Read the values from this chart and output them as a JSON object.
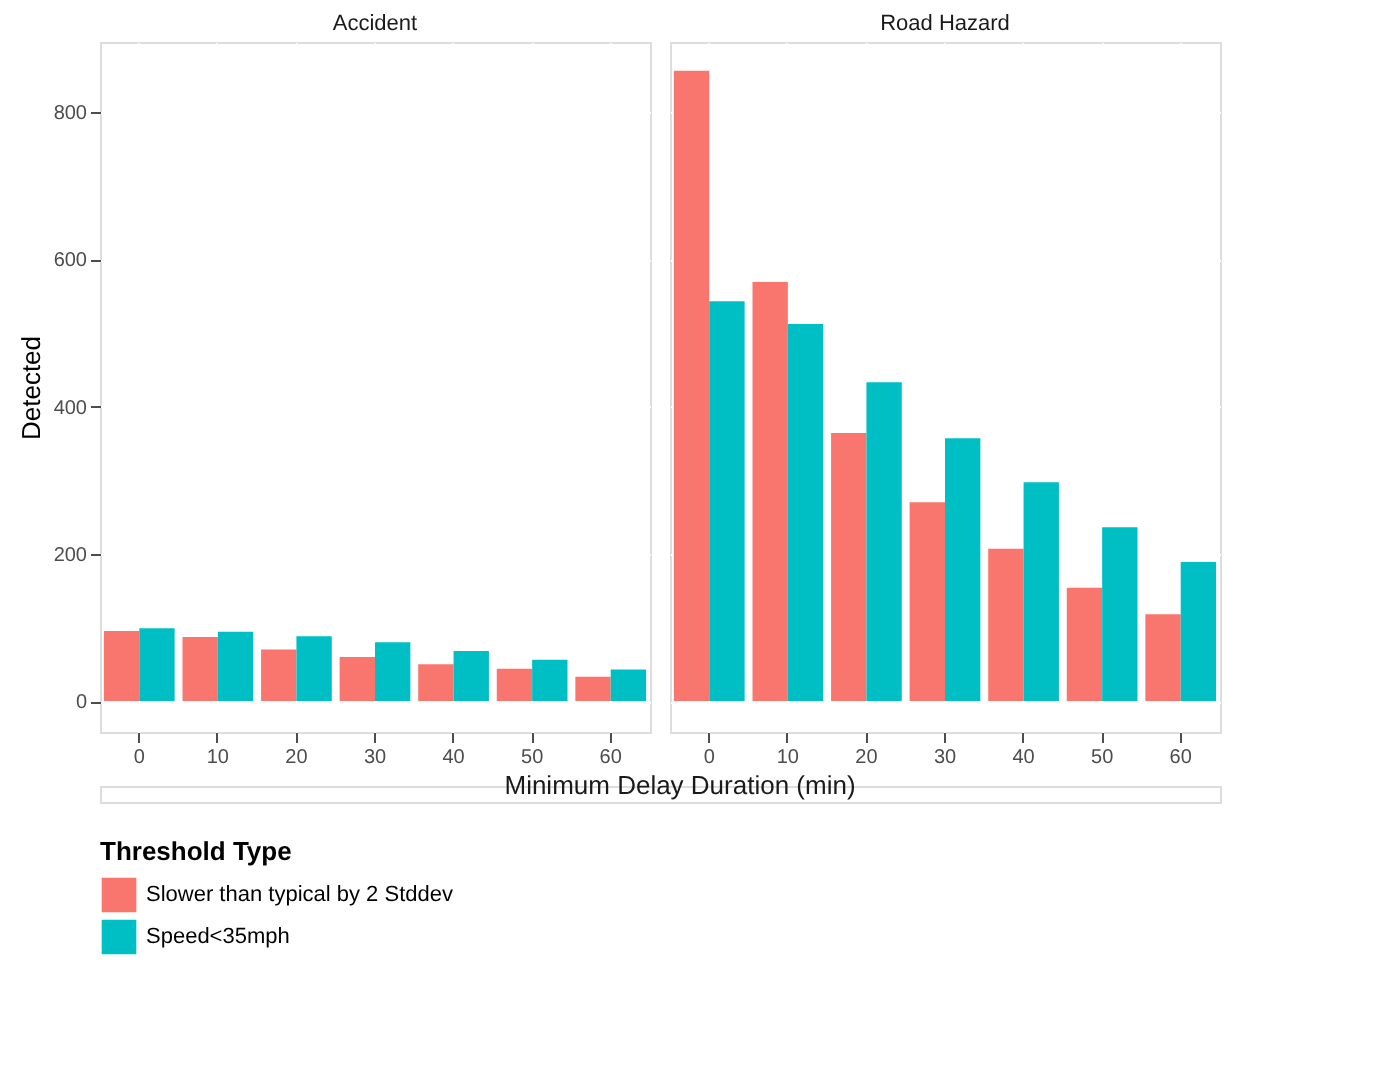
{
  "chart_data": [
    {
      "type": "bar",
      "title": "Accident",
      "ylabel": "Detected",
      "xlabel": "Minimum Delay Duration (min)",
      "legend_title": "Threshold Type",
      "legend": "bottom left",
      "grid": true,
      "categories": [
        "0",
        "10",
        "20",
        "30",
        "40",
        "50",
        "60"
      ],
      "ylim": [
        -42,
        895
      ],
      "yticks": [
        0,
        200,
        400,
        600,
        800
      ],
      "series": [
        {
          "name": "Slower than typical by 2 Stddev",
          "color": "#f8766d",
          "values": [
            95,
            87,
            70,
            60,
            50,
            44,
            33
          ]
        },
        {
          "name": "Speed<35mph",
          "color": "#00bfc4",
          "values": [
            99,
            94,
            88,
            80,
            68,
            56,
            43
          ]
        }
      ]
    },
    {
      "type": "bar",
      "title": "Road Hazard",
      "legend": "bottom left",
      "grid": true,
      "tick_labels": "x",
      "categories": [
        "0",
        "10",
        "20",
        "30",
        "40",
        "50",
        "60"
      ],
      "ylim": [
        -42,
        895
      ],
      "yticks": [
        0,
        200,
        400,
        600,
        800
      ],
      "series": [
        {
          "name": "Slower than typical by 2 Stddev",
          "color": "#f8766d",
          "values": [
            856,
            569,
            364,
            270,
            207,
            154,
            118
          ]
        },
        {
          "name": "Speed<35mph",
          "color": "#00bfc4",
          "values": [
            543,
            512,
            433,
            357,
            297,
            236,
            189
          ]
        }
      ]
    }
  ]
}
